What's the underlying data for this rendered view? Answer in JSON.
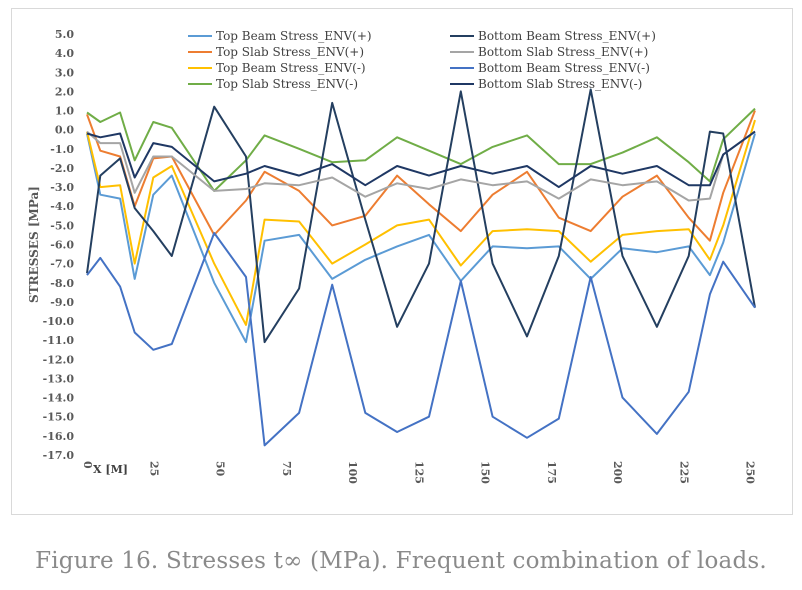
{
  "caption": "Figure 16. Stresses t∞ (MPa). Frequent combination of loads.",
  "chart_data": {
    "type": "line",
    "title": "",
    "xlabel": "X [M]",
    "ylabel": "STRESSES [MPa]",
    "xlim": [
      0,
      252
    ],
    "ylim": [
      -17,
      5
    ],
    "x_ticks": [
      0,
      25,
      50,
      75,
      100,
      125,
      150,
      175,
      200,
      225,
      250
    ],
    "y_ticks": [
      "5.0",
      "4.0",
      "3.0",
      "2.0",
      "1.0",
      "0.0",
      "-1.0",
      "-2.0",
      "-3.0",
      "-4.0",
      "-5.0",
      "-6.0",
      "-7.0",
      "-8.0",
      "-9.0",
      "-10.0",
      "-11.0",
      "-12.0",
      "-13.0",
      "-14.0",
      "-15.0",
      "-16.0",
      "-17.0"
    ],
    "grid": false,
    "legend_placement": "top",
    "x": [
      0,
      5,
      12.5,
      18,
      25,
      32,
      48,
      60,
      67,
      80,
      92.5,
      105,
      117,
      129,
      141,
      153,
      166,
      178,
      190,
      202,
      215,
      227,
      235,
      240,
      252
    ],
    "series": [
      {
        "name": "Top Beam Stress_ENV(+)",
        "color": "#5b9bd5",
        "values": [
          -0.2,
          -3.4,
          -3.6,
          -7.8,
          -3.4,
          -2.4,
          -8.0,
          -11.1,
          -5.8,
          -5.5,
          -7.8,
          -6.8,
          -6.1,
          -5.5,
          -7.9,
          -6.1,
          -6.2,
          -6.1,
          -7.8,
          -6.2,
          -6.4,
          -6.1,
          -7.6,
          -5.9,
          -0.2
        ]
      },
      {
        "name": "Top Slab Stress_ENV(+)",
        "color": "#ed7d31",
        "values": [
          0.8,
          -1.1,
          -1.4,
          -4.0,
          -1.5,
          -1.4,
          -5.5,
          -3.7,
          -2.2,
          -3.2,
          -5.0,
          -4.5,
          -2.4,
          -3.9,
          -5.3,
          -3.4,
          -2.2,
          -4.6,
          -5.3,
          -3.5,
          -2.4,
          -4.6,
          -5.8,
          -3.3,
          1.0
        ]
      },
      {
        "name": "Top Beam Stress_ENV(-)",
        "color": "#ffc000",
        "values": [
          -0.1,
          -3.0,
          -2.9,
          -7.0,
          -2.5,
          -1.9,
          -7.0,
          -10.2,
          -4.7,
          -4.8,
          -7.0,
          -6.0,
          -5.0,
          -4.7,
          -7.1,
          -5.3,
          -5.2,
          -5.3,
          -6.9,
          -5.5,
          -5.3,
          -5.2,
          -6.8,
          -5.0,
          0.5
        ]
      },
      {
        "name": "Top Slab Stress_ENV(-)",
        "color": "#70ad47",
        "values": [
          0.9,
          0.4,
          0.9,
          -1.6,
          0.4,
          0.1,
          -3.2,
          -1.6,
          -0.3,
          -1.0,
          -1.7,
          -1.6,
          -0.4,
          -1.1,
          -1.8,
          -0.9,
          -0.3,
          -1.8,
          -1.8,
          -1.2,
          -0.4,
          -1.7,
          -2.7,
          -0.5,
          1.1
        ]
      },
      {
        "name": "Bottom Beam Stress_ENV(+)",
        "color": "#243f60",
        "values": [
          -7.5,
          -2.4,
          -1.5,
          -4.1,
          -5.3,
          -6.6,
          1.2,
          -1.4,
          -11.1,
          -8.3,
          1.4,
          -4.7,
          -10.3,
          -7.0,
          2.0,
          -7.0,
          -10.8,
          -6.6,
          2.1,
          -6.6,
          -10.3,
          -6.6,
          -0.1,
          -0.2,
          -9.3
        ]
      },
      {
        "name": "Bottom Slab Stress_ENV(+)",
        "color": "#a5a5a5",
        "values": [
          -0.1,
          -0.7,
          -0.7,
          -3.3,
          -1.4,
          -1.4,
          -3.2,
          -3.1,
          -2.8,
          -2.9,
          -2.5,
          -3.5,
          -2.8,
          -3.1,
          -2.6,
          -2.9,
          -2.7,
          -3.6,
          -2.6,
          -2.9,
          -2.7,
          -3.7,
          -3.6,
          -1.3,
          -0.1
        ]
      },
      {
        "name": "Bottom Beam Stress_ENV(-)",
        "color": "#4472c4",
        "values": [
          -7.6,
          -6.7,
          -8.2,
          -10.6,
          -11.5,
          -11.2,
          -5.4,
          -7.7,
          -16.5,
          -14.8,
          -8.1,
          -14.8,
          -15.8,
          -15.0,
          -7.9,
          -15.0,
          -16.1,
          -15.1,
          -7.7,
          -14.0,
          -15.9,
          -13.7,
          -8.6,
          -6.9,
          -9.3
        ]
      },
      {
        "name": "Bottom Slab Stress_ENV(-)",
        "color": "#1f3864",
        "values": [
          -0.2,
          -0.4,
          -0.2,
          -2.5,
          -0.7,
          -0.9,
          -2.7,
          -2.3,
          -1.9,
          -2.4,
          -1.8,
          -2.9,
          -1.9,
          -2.4,
          -1.9,
          -2.3,
          -1.9,
          -3.0,
          -1.9,
          -2.3,
          -1.9,
          -2.9,
          -2.9,
          -1.3,
          -0.1
        ]
      }
    ]
  }
}
